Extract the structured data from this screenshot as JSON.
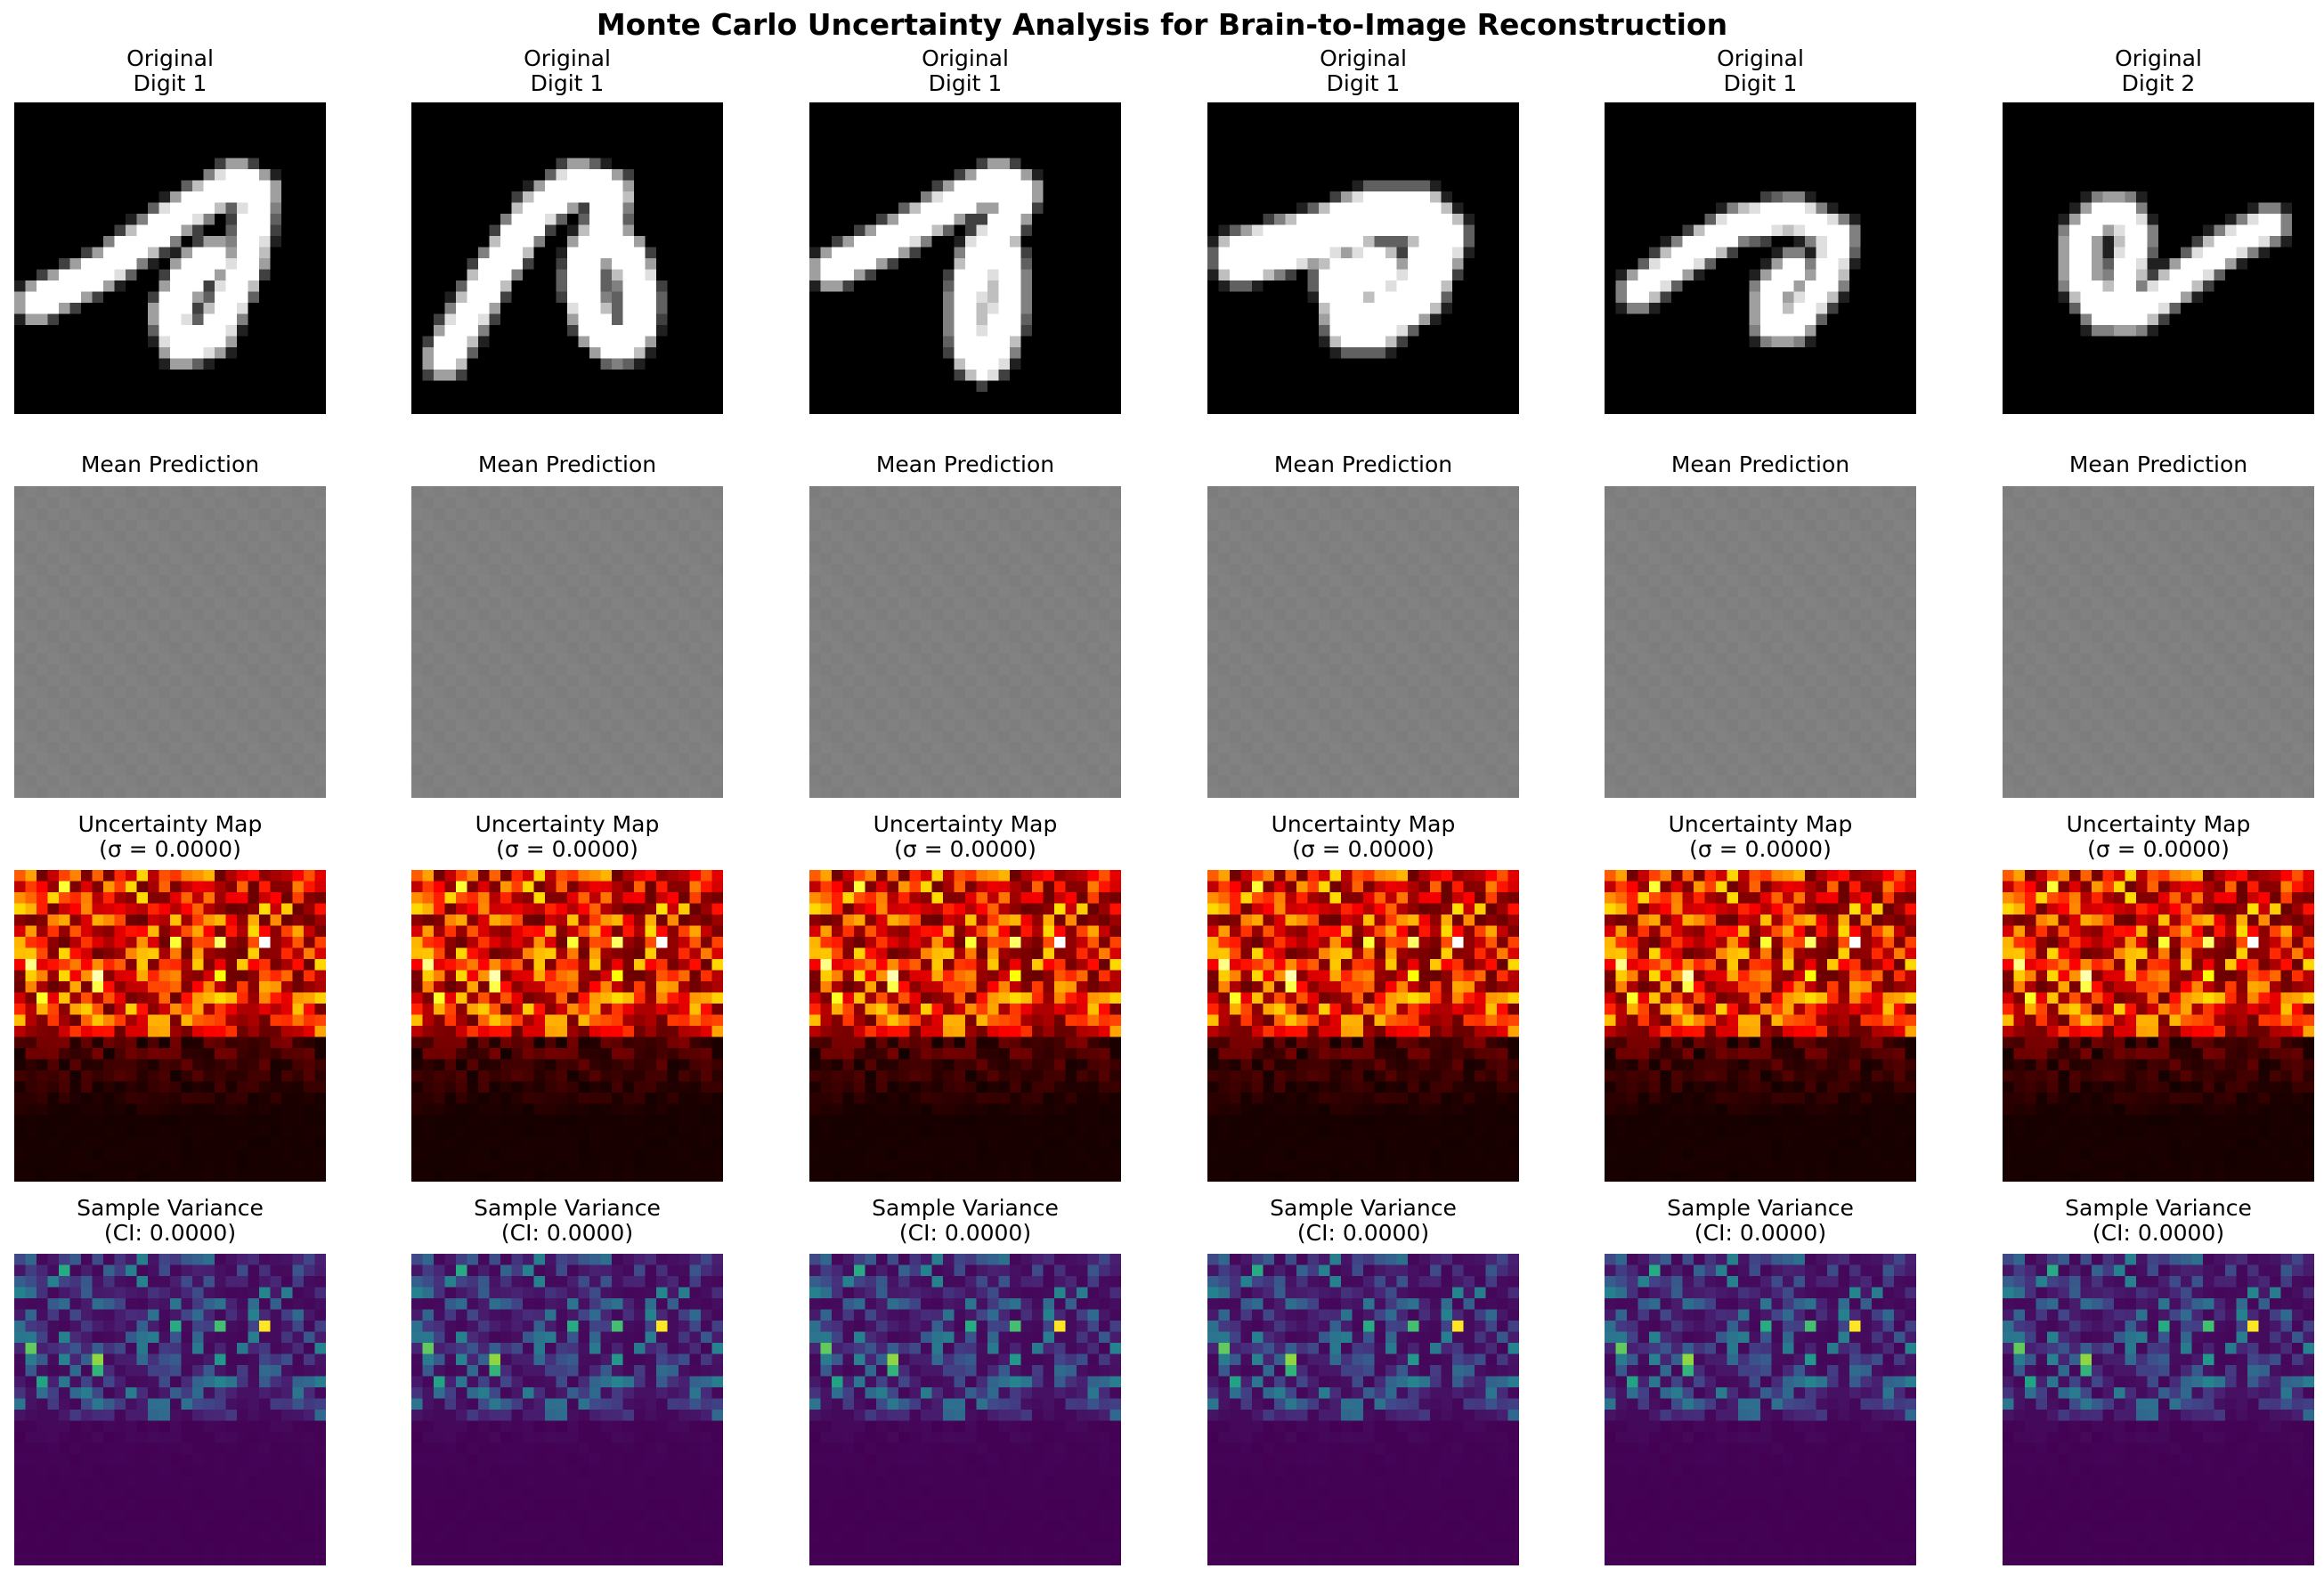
{
  "figure": {
    "title": "Monte Carlo Uncertainty Analysis for Brain-to-Image Reconstruction"
  },
  "rows": [
    {
      "name": "original",
      "titles": [
        [
          "Original",
          "Digit 1"
        ],
        [
          "Original",
          "Digit 1"
        ],
        [
          "Original",
          "Digit 1"
        ],
        [
          "Original",
          "Digit 1"
        ],
        [
          "Original",
          "Digit 1"
        ],
        [
          "Original",
          "Digit 2"
        ]
      ],
      "colormap": "gray"
    },
    {
      "name": "mean-prediction",
      "titles": [
        [
          "Mean Prediction"
        ],
        [
          "Mean Prediction"
        ],
        [
          "Mean Prediction"
        ],
        [
          "Mean Prediction"
        ],
        [
          "Mean Prediction"
        ],
        [
          "Mean Prediction"
        ]
      ],
      "colormap": "gray"
    },
    {
      "name": "uncertainty-map",
      "titles": [
        [
          "Uncertainty Map",
          "(σ = 0.0000)"
        ],
        [
          "Uncertainty Map",
          "(σ = 0.0000)"
        ],
        [
          "Uncertainty Map",
          "(σ = 0.0000)"
        ],
        [
          "Uncertainty Map",
          "(σ = 0.0000)"
        ],
        [
          "Uncertainty Map",
          "(σ = 0.0000)"
        ],
        [
          "Uncertainty Map",
          "(σ = 0.0000)"
        ]
      ],
      "colormap": "hot"
    },
    {
      "name": "sample-variance",
      "titles": [
        [
          "Sample Variance",
          "(CI: 0.0000)"
        ],
        [
          "Sample Variance",
          "(CI: 0.0000)"
        ],
        [
          "Sample Variance",
          "(CI: 0.0000)"
        ],
        [
          "Sample Variance",
          "(CI: 0.0000)"
        ],
        [
          "Sample Variance",
          "(CI: 0.0000)"
        ],
        [
          "Sample Variance",
          "(CI: 0.0000)"
        ]
      ],
      "colormap": "viridis"
    }
  ],
  "chart_data": {
    "type": "heatmap",
    "grid_size": [
      28,
      28
    ],
    "axes_visible": false,
    "colors": {
      "background": "#ffffff",
      "mean_prediction": "#808080"
    }
  }
}
